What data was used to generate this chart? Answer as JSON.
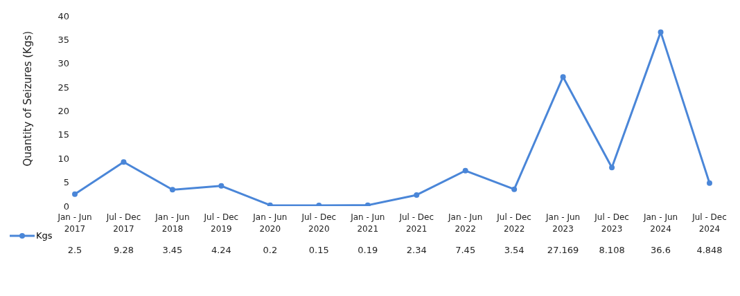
{
  "chart_data": {
    "type": "line",
    "ylabel": "Quantity of Seizures (Kgs)",
    "categories": [
      "Jan - Jun 2017",
      "Jul - Dec 2017",
      "Jan - Jun 2018",
      "Jul - Dec 2019",
      "Jan - Jun 2020",
      "Jul - Dec 2020",
      "Jan - Jun 2021",
      "Jul - Dec 2021",
      "Jan - Jun 2022",
      "Jul - Dec 2022",
      "Jan - Jun 2023",
      "Jul - Dec 2023",
      "Jan - Jun 2024",
      "Jul - Dec 2024"
    ],
    "series": [
      {
        "name": "Kgs",
        "color": "#4a86d8",
        "values": [
          2.5,
          9.28,
          3.45,
          4.24,
          0.2,
          0.15,
          0.19,
          2.34,
          7.45,
          3.54,
          27.169,
          8.108,
          36.6,
          4.848
        ]
      }
    ],
    "ylim": [
      0,
      40
    ],
    "yticks": [
      0,
      5,
      10,
      15,
      20,
      25,
      30,
      35,
      40
    ],
    "marker": "circle",
    "line_style": "solid",
    "data_labels": true,
    "legend": "bottom left"
  }
}
